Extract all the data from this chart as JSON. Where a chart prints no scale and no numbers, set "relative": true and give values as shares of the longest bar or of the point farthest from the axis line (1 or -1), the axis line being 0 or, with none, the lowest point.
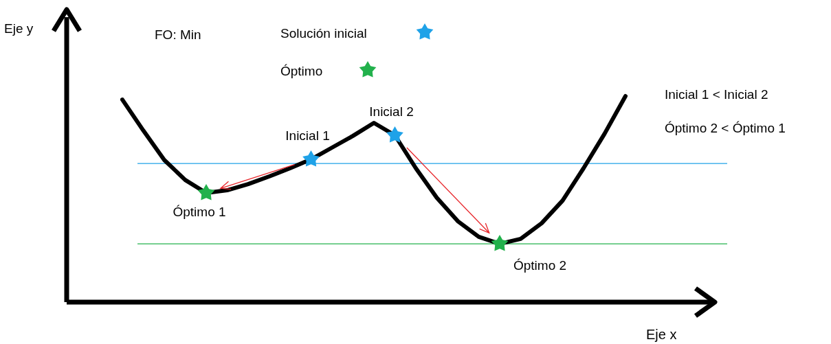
{
  "chart_data": {
    "type": "line",
    "relative": true,
    "xlabel": "Eje x",
    "categories": [
      null,
      null,
      null,
      null,
      null,
      null,
      null,
      null,
      null,
      null,
      null,
      null,
      null,
      null,
      null,
      null,
      null,
      null,
      null,
      null,
      null,
      null,
      null,
      null,
      null
    ],
    "series": [
      {
        "color": "#000000",
        "values": [
          0.983,
          0.833,
          0.69,
          0.593,
          0.53,
          0.543,
          0.573,
          0.61,
          0.65,
          0.693,
          0.75,
          0.807,
          0.87,
          0.81,
          0.65,
          0.507,
          0.393,
          0.317,
          0.283,
          0.307,
          0.383,
          0.493,
          0.65,
          0.817,
          1
        ]
      }
    ],
    "ref_lines": [
      {
        "axis": "y",
        "value": 0.673,
        "color": "#1fa2e8"
      },
      {
        "axis": "y",
        "value": 0.283,
        "color": "#22b14c"
      }
    ],
    "annotations": [
      "FO: Min",
      "Solución inicial",
      "Óptimo",
      {
        "text": "Inicial 1",
        "y": 0.693
      },
      {
        "text": "Inicial 2",
        "y": 0.81
      },
      {
        "text": "Óptimo 1",
        "y": 0.53
      },
      {
        "text": "Óptimo 2",
        "y": 0.283
      },
      "Inicial 1 < Inicial 2",
      "Óptimo 2 < Óptimo 1",
      "Eje y"
    ]
  }
}
